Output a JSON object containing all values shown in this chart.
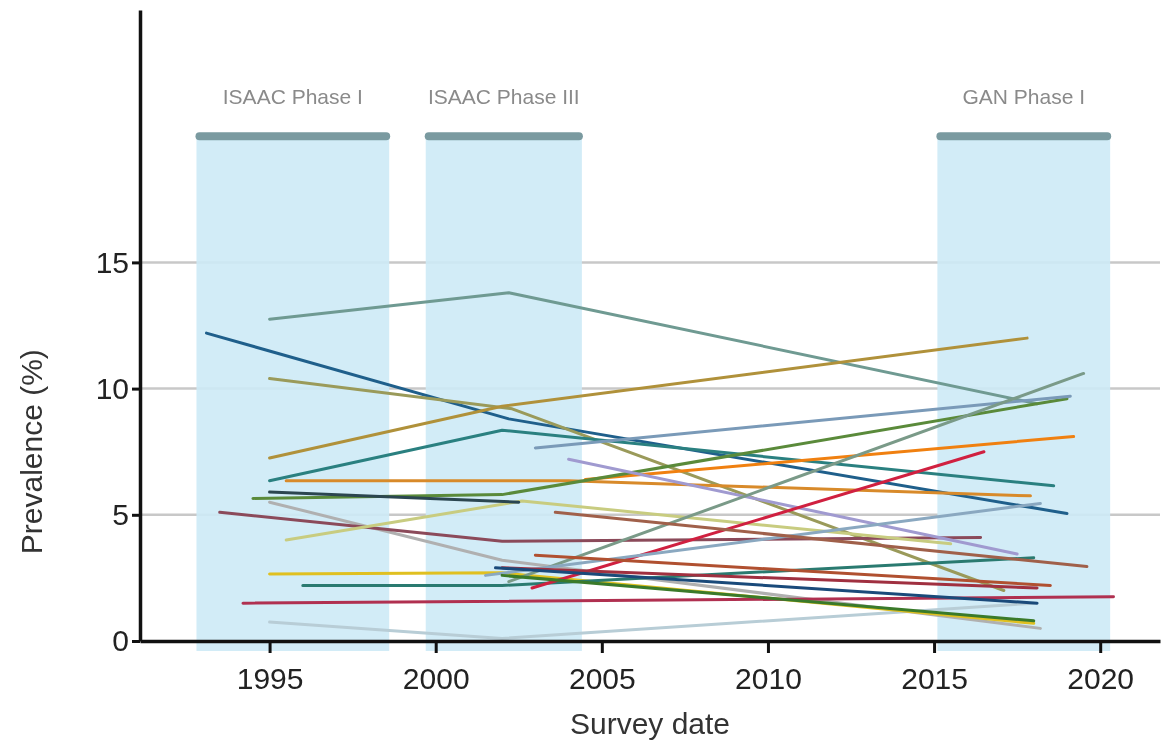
{
  "chart_data": {
    "type": "line",
    "xlabel": "Survey date",
    "ylabel": "Prevalence (%)",
    "xlim": [
      1991.1,
      2021.8
    ],
    "xticks": [
      1995,
      2000,
      2005,
      2010,
      2015,
      2020
    ],
    "ylim": [
      0,
      25
    ],
    "yticks": [
      0,
      5,
      10,
      15
    ],
    "grid": "y",
    "marker": "none",
    "line_style": "solid",
    "bands": [
      {
        "axis": "x",
        "from": 1992.8,
        "to": 1998.6,
        "label": "ISAAC Phase I",
        "color": "#cdeaf6"
      },
      {
        "axis": "x",
        "from": 1999.7,
        "to": 2004.4,
        "label": "ISAAC Phase III",
        "color": "#cdeaf6"
      },
      {
        "axis": "x",
        "from": 2015.1,
        "to": 2020.3,
        "label": "GAN Phase I",
        "color": "#cdeaf6"
      }
    ],
    "series": [
      {
        "color": "#b8cdd6",
        "x": [
          1995,
          2002,
          2018
        ],
        "values": [
          0.75,
          0.1,
          1.5
        ]
      },
      {
        "color": "#6f9a92",
        "x": [
          1995,
          2002.2,
          2018.1
        ],
        "values": [
          12.75,
          13.8,
          9.4
        ]
      },
      {
        "color": "#1f5f8b",
        "x": [
          1993.1,
          2002.2,
          2019
        ],
        "values": [
          12.2,
          8.8,
          5.05
        ]
      },
      {
        "color": "#9a9a5a",
        "x": [
          1995,
          2002.3,
          2017.1
        ],
        "values": [
          10.4,
          9.2,
          2.0
        ]
      },
      {
        "color": "#b0913a",
        "x": [
          1995,
          2002,
          2017.8
        ],
        "values": [
          7.25,
          9.3,
          12.0
        ]
      },
      {
        "color": "#2a8080",
        "x": [
          1995,
          2002,
          2018.6
        ],
        "values": [
          6.35,
          8.35,
          6.15
        ]
      },
      {
        "color": "#d88a2a",
        "x": [
          1995.5,
          2004,
          2017.9
        ],
        "values": [
          6.35,
          6.35,
          5.75
        ]
      },
      {
        "color": "#f08010",
        "x": [
          2004.5,
          2019.2
        ],
        "values": [
          6.4,
          8.1
        ]
      },
      {
        "color": "#5a8a3a",
        "x": [
          1994.5,
          2002,
          2019
        ],
        "values": [
          5.65,
          5.8,
          9.6
        ]
      },
      {
        "color": "#b0b0b0",
        "x": [
          1995,
          2002,
          2018.2
        ],
        "values": [
          5.5,
          3.2,
          0.5
        ]
      },
      {
        "color": "#8b4a5a",
        "x": [
          1993.5,
          2002,
          2016.4
        ],
        "values": [
          5.1,
          3.95,
          4.1
        ]
      },
      {
        "color": "#c8cc80",
        "x": [
          1995.5,
          2002.6,
          2015.5
        ],
        "values": [
          4.0,
          5.55,
          3.85
        ]
      },
      {
        "color": "#e0c020",
        "x": [
          1995,
          2002,
          2018
        ],
        "values": [
          2.65,
          2.7,
          0.7
        ]
      },
      {
        "color": "#2a7a70",
        "x": [
          1996,
          2002,
          2018
        ],
        "values": [
          2.2,
          2.2,
          3.3
        ]
      },
      {
        "color": "#b03050",
        "x": [
          1994.2,
          2020.4
        ],
        "values": [
          1.5,
          1.75
        ]
      },
      {
        "color": "#7a9ab8",
        "x": [
          2003,
          2019.1
        ],
        "values": [
          7.65,
          9.7
        ]
      },
      {
        "color": "#a09ad0",
        "x": [
          2004,
          2017.5
        ],
        "values": [
          7.2,
          3.45
        ]
      },
      {
        "color": "#d02040",
        "x": [
          2002.9,
          2016.5
        ],
        "values": [
          2.1,
          7.5
        ]
      },
      {
        "color": "#7a9a88",
        "x": [
          2002.2,
          2019.5
        ],
        "values": [
          2.35,
          10.6
        ]
      },
      {
        "color": "#8aa8c0",
        "x": [
          2001.5,
          2018.2
        ],
        "values": [
          2.6,
          5.45
        ]
      },
      {
        "color": "#a0604a",
        "x": [
          2003.6,
          2019.6
        ],
        "values": [
          5.1,
          2.95
        ]
      },
      {
        "color": "#b05030",
        "x": [
          2003,
          2018.5
        ],
        "values": [
          3.4,
          2.2
        ]
      },
      {
        "color": "#a03040",
        "x": [
          2002,
          2018.1
        ],
        "values": [
          2.9,
          2.1
        ]
      },
      {
        "color": "#1a4a7a",
        "x": [
          2001.8,
          2018.1
        ],
        "values": [
          2.9,
          1.5
        ]
      },
      {
        "color": "#3a7a2a",
        "x": [
          2002,
          2018
        ],
        "values": [
          2.6,
          0.8
        ]
      },
      {
        "color": "#2b4650",
        "x": [
          1995,
          2002.5
        ],
        "values": [
          5.9,
          5.5
        ]
      }
    ]
  }
}
